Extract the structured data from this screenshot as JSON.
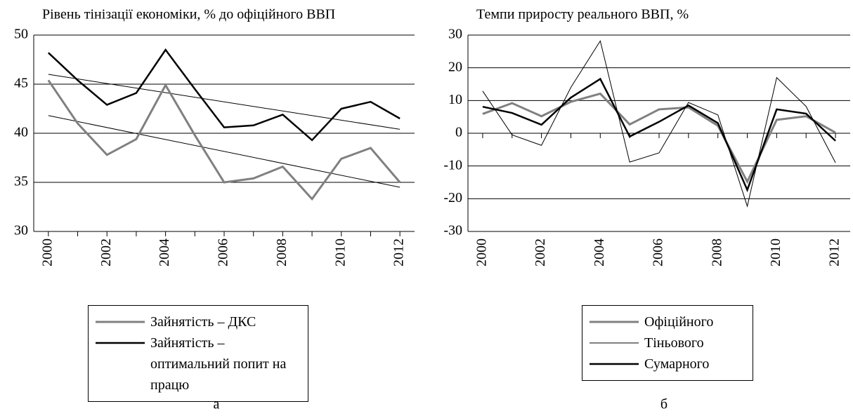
{
  "chart_data": [
    {
      "type": "line",
      "title": "Рівень тінізації економіки, % до офіційного ВВП",
      "caption": "а",
      "x": [
        2000,
        2001,
        2002,
        2003,
        2004,
        2005,
        2006,
        2007,
        2008,
        2009,
        2010,
        2011,
        2012
      ],
      "xlim": [
        1999.5,
        2012.5
      ],
      "xticks": [
        2000,
        2002,
        2004,
        2006,
        2008,
        2010,
        2012
      ],
      "ylim": [
        30,
        50
      ],
      "yticks": [
        30,
        35,
        40,
        45,
        50
      ],
      "grid": true,
      "series": [
        {
          "name": "Зайнятість – ДКС",
          "color": "#808080",
          "linewidth": 3,
          "values": [
            45.4,
            41,
            37.8,
            39.4,
            44.9,
            39.8,
            35.0,
            35.4,
            36.6,
            33.3,
            37.4,
            38.5,
            35.0
          ]
        },
        {
          "name": "Зайнятість – оптимальний попит на працю",
          "color": "#000000",
          "linewidth": 2.5,
          "values": [
            48.2,
            45.4,
            42.9,
            44.1,
            48.5,
            44.5,
            40.6,
            40.8,
            41.9,
            39.3,
            42.5,
            43.2,
            41.5
          ]
        }
      ],
      "trendlines": [
        {
          "x": [
            2000,
            2012
          ],
          "values": [
            41.8,
            34.5
          ],
          "color": "#000000"
        },
        {
          "x": [
            2000,
            2012
          ],
          "values": [
            46.0,
            40.4
          ],
          "color": "#000000"
        }
      ]
    },
    {
      "type": "line",
      "title": "Темпи приросту реального ВВП, %",
      "caption": "б",
      "x": [
        2000,
        2001,
        2002,
        2003,
        2004,
        2005,
        2006,
        2007,
        2008,
        2009,
        2010,
        2011,
        2012
      ],
      "xlim": [
        1999.5,
        2012.5
      ],
      "xticks": [
        2000,
        2002,
        2004,
        2006,
        2008,
        2010,
        2012
      ],
      "ylim": [
        -30,
        30
      ],
      "yticks": [
        -30,
        -20,
        -10,
        0,
        10,
        20,
        30
      ],
      "grid": true,
      "series": [
        {
          "name": "Офіційного",
          "color": "#808080",
          "linewidth": 3,
          "values": [
            5.9,
            9.2,
            5.2,
            9.6,
            12.1,
            2.7,
            7.3,
            7.9,
            2.3,
            -14.8,
            4.1,
            5.2,
            0.2
          ]
        },
        {
          "name": "Тіньового",
          "color": "#000000",
          "linewidth": 1,
          "values": [
            12.9,
            -0.5,
            -3.7,
            14,
            28.2,
            -8.8,
            -6,
            9.4,
            5.6,
            -22.3,
            17,
            8.2,
            -9
          ]
        },
        {
          "name": "Сумарного",
          "color": "#000000",
          "linewidth": 2.5,
          "values": [
            8.1,
            6.2,
            2.6,
            10.9,
            16.6,
            -1,
            3.5,
            8.5,
            3.1,
            -17.3,
            7.3,
            6,
            -2.3
          ]
        }
      ]
    }
  ]
}
